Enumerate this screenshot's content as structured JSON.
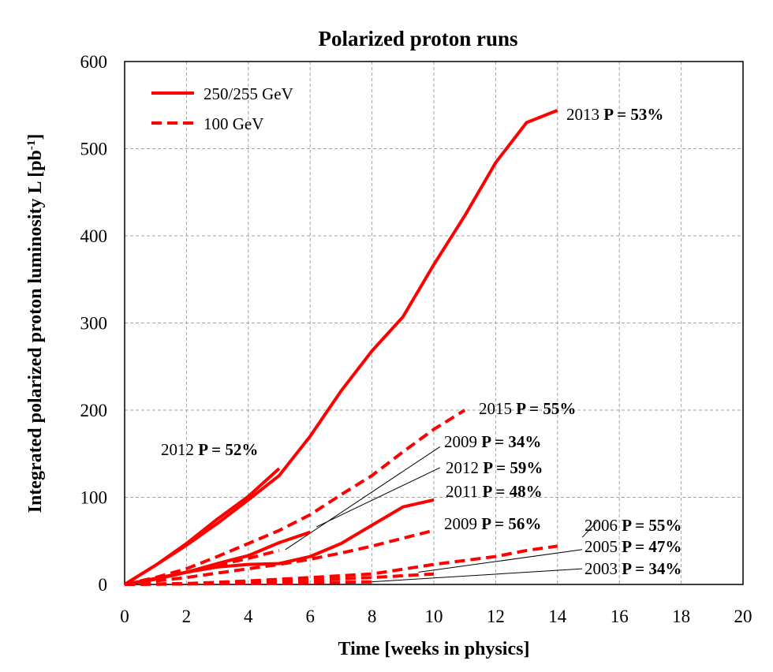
{
  "chart_data": {
    "type": "line",
    "title": "Polarized proton runs",
    "xlabel": "Time [weeks in physics]",
    "ylabel": "Integrated polarized proton luminosity L [pb",
    "ylabel_sup": "-1",
    "ylabel_end": "]",
    "xlim": [
      0,
      20
    ],
    "ylim": [
      0,
      600
    ],
    "xticks": [
      "0",
      "2",
      "4",
      "6",
      "8",
      "10",
      "12",
      "14",
      "16",
      "18",
      "20"
    ],
    "yticks": [
      "0",
      "100",
      "200",
      "300",
      "400",
      "500",
      "600"
    ],
    "grid": true,
    "colors": {
      "series": "#ff0000",
      "grid": "#a0a0a0",
      "leader": "#000000"
    },
    "legend": {
      "placement": "top-left",
      "entries": [
        {
          "label": "250/255 GeV",
          "style": "solid"
        },
        {
          "label": "100 GeV",
          "style": "dashed"
        }
      ]
    },
    "series": [
      {
        "year": "2013",
        "style": "solid",
        "x": [
          0,
          1,
          2,
          3,
          4,
          5,
          6,
          7,
          8,
          9,
          10,
          11,
          12,
          13,
          14
        ],
        "y": [
          0,
          22,
          45,
          70,
          97,
          125,
          170,
          222,
          268,
          307,
          367,
          423,
          484,
          530,
          544
        ]
      },
      {
        "year": "2012",
        "style": "solid",
        "x": [
          0,
          1,
          2,
          3,
          4,
          5
        ],
        "y": [
          0,
          22,
          47,
          75,
          101,
          133
        ]
      },
      {
        "year": "2015",
        "style": "dashed",
        "x": [
          0,
          1,
          2,
          3,
          4,
          5,
          6,
          7,
          8,
          9,
          10,
          11
        ],
        "y": [
          0,
          8,
          18,
          32,
          47,
          62,
          80,
          103,
          125,
          152,
          178,
          200
        ]
      },
      {
        "year": "2009",
        "style": "solid",
        "x": [
          0,
          1,
          2,
          3,
          4,
          5,
          6
        ],
        "y": [
          0,
          6,
          14,
          24,
          33,
          48,
          60
        ]
      },
      {
        "year": "2012",
        "style": "dashed",
        "x": [
          0,
          1,
          2,
          3,
          4,
          5
        ],
        "y": [
          0,
          6,
          14,
          22,
          30,
          39
        ]
      },
      {
        "year": "2011",
        "style": "solid",
        "x": [
          0,
          1,
          2,
          3,
          4,
          5,
          6,
          7,
          8,
          9,
          10
        ],
        "y": [
          0,
          7,
          14,
          20,
          23,
          24,
          32,
          47,
          68,
          89,
          97
        ]
      },
      {
        "year": "2009",
        "style": "dashed",
        "x": [
          0,
          1,
          2,
          3,
          4,
          5,
          6,
          7,
          8,
          9,
          10
        ],
        "y": [
          0,
          4,
          8,
          13,
          18,
          23,
          29,
          36,
          44,
          53,
          62
        ]
      },
      {
        "year": "2006",
        "style": "dashed",
        "x": [
          0,
          2,
          4,
          6,
          8,
          10,
          12,
          13,
          14
        ],
        "y": [
          0,
          1,
          4,
          8,
          12,
          23,
          32,
          39,
          44
        ]
      },
      {
        "year": "2005",
        "style": "dashed",
        "x": [
          0,
          2,
          4,
          6,
          8,
          10
        ],
        "y": [
          0,
          1,
          3,
          5,
          8,
          12
        ]
      },
      {
        "year": "2003",
        "style": "dashed",
        "x": [
          0,
          2,
          4,
          6,
          8
        ],
        "y": [
          0,
          0.5,
          1,
          2,
          3
        ]
      }
    ],
    "annotations": [
      {
        "year": "2013",
        "pol": "P = 53%"
      },
      {
        "year": "2015",
        "pol": "P = 55%"
      },
      {
        "year": "2012",
        "pol": "P = 52%"
      },
      {
        "year": "2009",
        "pol": "P = 34%"
      },
      {
        "year": "2012",
        "pol": "P = 59%"
      },
      {
        "year": "2011",
        "pol": "P = 48%"
      },
      {
        "year": "2009",
        "pol": "P = 56%"
      },
      {
        "year": "2006",
        "pol": "P = 55%"
      },
      {
        "year": "2005",
        "pol": "P = 47%"
      },
      {
        "year": "2003",
        "pol": "P = 34%"
      }
    ]
  }
}
